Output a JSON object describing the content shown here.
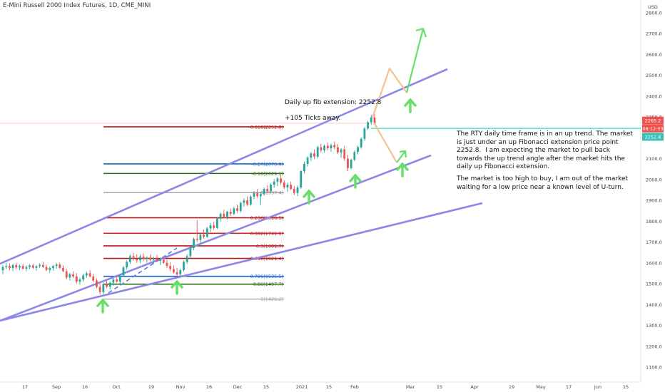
{
  "header": {
    "symbol_title": "E-Mini Russell 2000 Index Futures, 1D, CME_MINI",
    "currency": "USD"
  },
  "annotations": {
    "fib_ext_label": "Daily up fib extension: 2252.8",
    "ticks_away": "+105 Ticks away.",
    "analysis_p1": "The RTY daily time frame is in an up trend. The market is just under an up Fibonacci extension price point 2252.8.  I am expecting the market to pull back towards the up trend angle after the market hits the daily up Fibonacci extension.",
    "analysis_p2": "The market is too high to buy, I am out of the market waiting for a low price near a known level of U-turn."
  },
  "price_badges": {
    "last_price": "2265.2",
    "countdown": "06:12:03",
    "secondary": "2252.8"
  },
  "colors": {
    "up_candle": "#26a69a",
    "down_candle": "#ef5350",
    "channel": "#8c88e6",
    "arrow_green": "#66e06a",
    "arrow_orange": "#f6c08f",
    "price_line": "#5ee1d6",
    "last_price_badge": "#ef5350",
    "time_badge": "#ef5350",
    "secondary_badge": "#39c0b6"
  },
  "chart_data": {
    "type": "candlestick",
    "title": "E-Mini Russell 2000 Index Futures, 1D, CME_MINI",
    "ylim": [
      1040,
      2850
    ],
    "y_ticks": [
      "2800.0",
      "2700.0",
      "2600.0",
      "2500.0",
      "2400.0",
      "2300.0",
      "2200.0",
      "2100.0",
      "2000.0",
      "1900.0",
      "1800.0",
      "1700.0",
      "1600.0",
      "1500.0",
      "1400.0",
      "1300.0",
      "1200.0",
      "1100.0"
    ],
    "x_ticks": [
      "17",
      "Sep",
      "16",
      "Oct",
      "19",
      "Nov",
      "16",
      "Dec",
      "15",
      "2021",
      "15",
      "Feb",
      "Mar",
      "15",
      "Apr",
      "19",
      "May",
      "17",
      "Jun",
      "15"
    ],
    "fib_levels": [
      {
        "label": "-0.618(2252.8)",
        "ratio": -0.618,
        "price": 2252.8,
        "color": "#b71c1c"
      },
      {
        "label": "-0.27(2075.0)",
        "ratio": -0.27,
        "price": 2075.0,
        "color": "#1e64c8"
      },
      {
        "label": "-0.18(2029.1)",
        "ratio": -0.18,
        "price": 2029.1,
        "color": "#2e6b12"
      },
      {
        "label": "0(1937.4)",
        "ratio": 0,
        "price": 1937.4,
        "color": "#888888"
      },
      {
        "label": "0.236(1816.5)",
        "ratio": 0.236,
        "price": 1816.5,
        "color": "#b71c1c"
      },
      {
        "label": "0.382(1741.9)",
        "ratio": 0.382,
        "price": 1741.9,
        "color": "#c62828"
      },
      {
        "label": "0.5(1681.7)",
        "ratio": 0.5,
        "price": 1681.7,
        "color": "#b71c1c"
      },
      {
        "label": "0.618(1621.4)",
        "ratio": 0.618,
        "price": 1621.4,
        "color": "#b71c1c"
      },
      {
        "label": "0.786(1535.5)",
        "ratio": 0.786,
        "price": 1535.5,
        "color": "#1e64c8"
      },
      {
        "label": "0.86(1497.7)",
        "ratio": 0.86,
        "price": 1497.7,
        "color": "#2e6b12"
      },
      {
        "label": "1(1426.2)",
        "ratio": 1,
        "price": 1426.2,
        "color": "#9e9e9e"
      }
    ],
    "candles": [
      {
        "o": 1565,
        "h": 1590,
        "l": 1545,
        "c": 1580
      },
      {
        "o": 1580,
        "h": 1600,
        "l": 1570,
        "c": 1585
      },
      {
        "o": 1585,
        "h": 1598,
        "l": 1565,
        "c": 1575
      },
      {
        "o": 1575,
        "h": 1595,
        "l": 1560,
        "c": 1590
      },
      {
        "o": 1590,
        "h": 1600,
        "l": 1570,
        "c": 1578
      },
      {
        "o": 1578,
        "h": 1592,
        "l": 1565,
        "c": 1585
      },
      {
        "o": 1585,
        "h": 1595,
        "l": 1568,
        "c": 1572
      },
      {
        "o": 1572,
        "h": 1588,
        "l": 1560,
        "c": 1580
      },
      {
        "o": 1580,
        "h": 1594,
        "l": 1570,
        "c": 1588
      },
      {
        "o": 1588,
        "h": 1596,
        "l": 1572,
        "c": 1576
      },
      {
        "o": 1576,
        "h": 1590,
        "l": 1562,
        "c": 1584
      },
      {
        "o": 1584,
        "h": 1598,
        "l": 1575,
        "c": 1590
      },
      {
        "o": 1590,
        "h": 1605,
        "l": 1575,
        "c": 1580
      },
      {
        "o": 1580,
        "h": 1592,
        "l": 1560,
        "c": 1566
      },
      {
        "o": 1566,
        "h": 1582,
        "l": 1552,
        "c": 1575
      },
      {
        "o": 1575,
        "h": 1590,
        "l": 1563,
        "c": 1585
      },
      {
        "o": 1585,
        "h": 1600,
        "l": 1572,
        "c": 1592
      },
      {
        "o": 1592,
        "h": 1602,
        "l": 1570,
        "c": 1576
      },
      {
        "o": 1576,
        "h": 1588,
        "l": 1555,
        "c": 1560
      },
      {
        "o": 1560,
        "h": 1572,
        "l": 1520,
        "c": 1530
      },
      {
        "o": 1530,
        "h": 1552,
        "l": 1515,
        "c": 1545
      },
      {
        "o": 1545,
        "h": 1560,
        "l": 1528,
        "c": 1535
      },
      {
        "o": 1535,
        "h": 1552,
        "l": 1500,
        "c": 1510
      },
      {
        "o": 1510,
        "h": 1528,
        "l": 1495,
        "c": 1520
      },
      {
        "o": 1520,
        "h": 1548,
        "l": 1510,
        "c": 1540
      },
      {
        "o": 1540,
        "h": 1558,
        "l": 1528,
        "c": 1550
      },
      {
        "o": 1550,
        "h": 1565,
        "l": 1530,
        "c": 1535
      },
      {
        "o": 1535,
        "h": 1548,
        "l": 1508,
        "c": 1515
      },
      {
        "o": 1515,
        "h": 1525,
        "l": 1478,
        "c": 1485
      },
      {
        "o": 1485,
        "h": 1500,
        "l": 1448,
        "c": 1460
      },
      {
        "o": 1460,
        "h": 1505,
        "l": 1450,
        "c": 1498
      },
      {
        "o": 1498,
        "h": 1515,
        "l": 1478,
        "c": 1485
      },
      {
        "o": 1485,
        "h": 1510,
        "l": 1472,
        "c": 1505
      },
      {
        "o": 1505,
        "h": 1528,
        "l": 1490,
        "c": 1520
      },
      {
        "o": 1520,
        "h": 1540,
        "l": 1505,
        "c": 1510
      },
      {
        "o": 1510,
        "h": 1545,
        "l": 1500,
        "c": 1540
      },
      {
        "o": 1540,
        "h": 1585,
        "l": 1532,
        "c": 1578
      },
      {
        "o": 1578,
        "h": 1612,
        "l": 1568,
        "c": 1605
      },
      {
        "o": 1605,
        "h": 1640,
        "l": 1595,
        "c": 1632
      },
      {
        "o": 1632,
        "h": 1648,
        "l": 1610,
        "c": 1620
      },
      {
        "o": 1620,
        "h": 1642,
        "l": 1600,
        "c": 1612
      },
      {
        "o": 1612,
        "h": 1640,
        "l": 1598,
        "c": 1630
      },
      {
        "o": 1630,
        "h": 1645,
        "l": 1610,
        "c": 1618
      },
      {
        "o": 1618,
        "h": 1632,
        "l": 1600,
        "c": 1625
      },
      {
        "o": 1625,
        "h": 1640,
        "l": 1608,
        "c": 1615
      },
      {
        "o": 1615,
        "h": 1630,
        "l": 1598,
        "c": 1622
      },
      {
        "o": 1622,
        "h": 1638,
        "l": 1605,
        "c": 1610
      },
      {
        "o": 1610,
        "h": 1625,
        "l": 1590,
        "c": 1615
      },
      {
        "o": 1615,
        "h": 1630,
        "l": 1596,
        "c": 1600
      },
      {
        "o": 1600,
        "h": 1615,
        "l": 1575,
        "c": 1585
      },
      {
        "o": 1585,
        "h": 1602,
        "l": 1560,
        "c": 1570
      },
      {
        "o": 1570,
        "h": 1588,
        "l": 1548,
        "c": 1555
      },
      {
        "o": 1555,
        "h": 1575,
        "l": 1535,
        "c": 1545
      },
      {
        "o": 1545,
        "h": 1572,
        "l": 1535,
        "c": 1565
      },
      {
        "o": 1565,
        "h": 1612,
        "l": 1558,
        "c": 1605
      },
      {
        "o": 1605,
        "h": 1640,
        "l": 1595,
        "c": 1632
      },
      {
        "o": 1632,
        "h": 1680,
        "l": 1625,
        "c": 1672
      },
      {
        "o": 1672,
        "h": 1722,
        "l": 1660,
        "c": 1715
      },
      {
        "o": 1715,
        "h": 1805,
        "l": 1700,
        "c": 1710
      },
      {
        "o": 1710,
        "h": 1742,
        "l": 1690,
        "c": 1735
      },
      {
        "o": 1735,
        "h": 1760,
        "l": 1715,
        "c": 1725
      },
      {
        "o": 1725,
        "h": 1772,
        "l": 1720,
        "c": 1765
      },
      {
        "o": 1765,
        "h": 1792,
        "l": 1748,
        "c": 1780
      },
      {
        "o": 1780,
        "h": 1798,
        "l": 1758,
        "c": 1768
      },
      {
        "o": 1768,
        "h": 1818,
        "l": 1762,
        "c": 1812
      },
      {
        "o": 1812,
        "h": 1842,
        "l": 1798,
        "c": 1835
      },
      {
        "o": 1835,
        "h": 1855,
        "l": 1815,
        "c": 1822
      },
      {
        "o": 1822,
        "h": 1850,
        "l": 1808,
        "c": 1845
      },
      {
        "o": 1845,
        "h": 1862,
        "l": 1825,
        "c": 1835
      },
      {
        "o": 1835,
        "h": 1870,
        "l": 1828,
        "c": 1862
      },
      {
        "o": 1862,
        "h": 1880,
        "l": 1840,
        "c": 1850
      },
      {
        "o": 1850,
        "h": 1895,
        "l": 1842,
        "c": 1888
      },
      {
        "o": 1888,
        "h": 1910,
        "l": 1870,
        "c": 1900
      },
      {
        "o": 1900,
        "h": 1920,
        "l": 1872,
        "c": 1880
      },
      {
        "o": 1880,
        "h": 1925,
        "l": 1875,
        "c": 1918
      },
      {
        "o": 1918,
        "h": 1945,
        "l": 1905,
        "c": 1935
      },
      {
        "o": 1935,
        "h": 1955,
        "l": 1912,
        "c": 1920
      },
      {
        "o": 1920,
        "h": 1940,
        "l": 1878,
        "c": 1930
      },
      {
        "o": 1930,
        "h": 1962,
        "l": 1922,
        "c": 1955
      },
      {
        "o": 1955,
        "h": 1972,
        "l": 1935,
        "c": 1945
      },
      {
        "o": 1945,
        "h": 1982,
        "l": 1938,
        "c": 1975
      },
      {
        "o": 1975,
        "h": 2002,
        "l": 1960,
        "c": 1990
      },
      {
        "o": 1990,
        "h": 2012,
        "l": 1968,
        "c": 2005
      },
      {
        "o": 2005,
        "h": 2022,
        "l": 1975,
        "c": 1985
      },
      {
        "o": 1985,
        "h": 1998,
        "l": 1955,
        "c": 1962
      },
      {
        "o": 1962,
        "h": 1985,
        "l": 1940,
        "c": 1975
      },
      {
        "o": 1975,
        "h": 1990,
        "l": 1950,
        "c": 1955
      },
      {
        "o": 1955,
        "h": 1968,
        "l": 1925,
        "c": 1935
      },
      {
        "o": 1935,
        "h": 1970,
        "l": 1920,
        "c": 1962
      },
      {
        "o": 1962,
        "h": 2045,
        "l": 1955,
        "c": 2040
      },
      {
        "o": 2040,
        "h": 2085,
        "l": 2030,
        "c": 2075
      },
      {
        "o": 2075,
        "h": 2112,
        "l": 2062,
        "c": 2105
      },
      {
        "o": 2105,
        "h": 2132,
        "l": 2090,
        "c": 2125
      },
      {
        "o": 2125,
        "h": 2145,
        "l": 2098,
        "c": 2110
      },
      {
        "o": 2110,
        "h": 2162,
        "l": 2102,
        "c": 2155
      },
      {
        "o": 2155,
        "h": 2172,
        "l": 2130,
        "c": 2140
      },
      {
        "o": 2140,
        "h": 2168,
        "l": 2128,
        "c": 2162
      },
      {
        "o": 2162,
        "h": 2178,
        "l": 2140,
        "c": 2150
      },
      {
        "o": 2150,
        "h": 2172,
        "l": 2132,
        "c": 2165
      },
      {
        "o": 2165,
        "h": 2182,
        "l": 2145,
        "c": 2155
      },
      {
        "o": 2155,
        "h": 2170,
        "l": 2122,
        "c": 2130
      },
      {
        "o": 2130,
        "h": 2150,
        "l": 2105,
        "c": 2145
      },
      {
        "o": 2145,
        "h": 2162,
        "l": 2090,
        "c": 2100
      },
      {
        "o": 2100,
        "h": 2118,
        "l": 2040,
        "c": 2055
      },
      {
        "o": 2055,
        "h": 2100,
        "l": 2048,
        "c": 2095
      },
      {
        "o": 2095,
        "h": 2140,
        "l": 2088,
        "c": 2132
      },
      {
        "o": 2132,
        "h": 2162,
        "l": 2120,
        "c": 2155
      },
      {
        "o": 2155,
        "h": 2202,
        "l": 2148,
        "c": 2195
      },
      {
        "o": 2195,
        "h": 2252,
        "l": 2185,
        "c": 2245
      },
      {
        "o": 2245,
        "h": 2282,
        "l": 2238,
        "c": 2275
      },
      {
        "o": 2275,
        "h": 2310,
        "l": 2262,
        "c": 2298
      },
      {
        "o": 2298,
        "h": 2315,
        "l": 2260,
        "c": 2265
      }
    ]
  }
}
